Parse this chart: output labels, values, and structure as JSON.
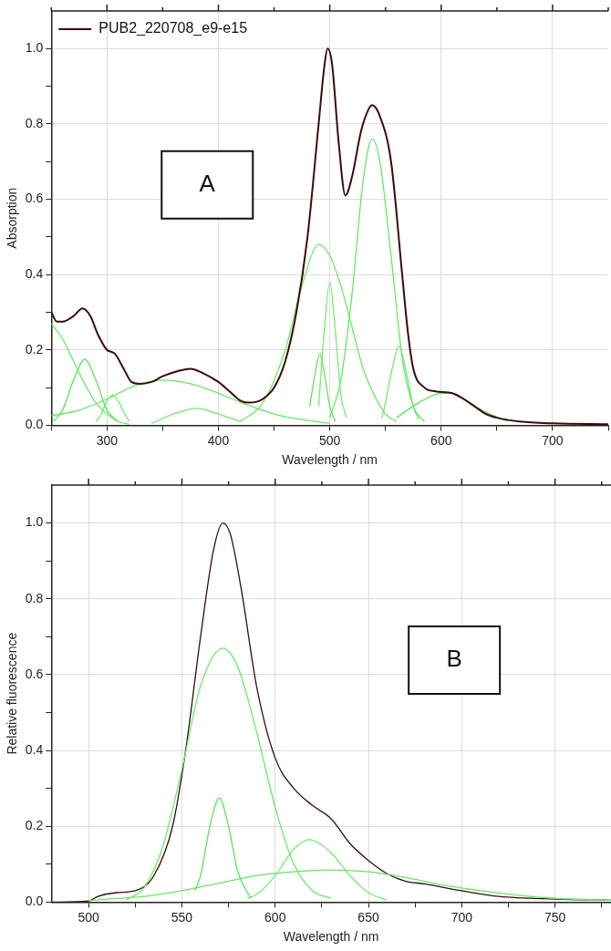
{
  "chart_data": [
    {
      "type": "line",
      "xlabel": "Wavelength / nm",
      "ylabel": "Absorption",
      "annotations": [
        "A"
      ],
      "legend": "top left",
      "grid": true,
      "xlim": [
        250,
        750
      ],
      "ylim": [
        0,
        1.1
      ],
      "xticks": [
        {
          "value": 250,
          "label": null
        },
        300,
        {
          "value": 350,
          "label": null
        },
        400,
        {
          "value": 450,
          "label": null
        },
        500,
        {
          "value": 550,
          "label": null
        },
        600,
        {
          "value": 650,
          "label": null
        },
        700,
        {
          "value": 750,
          "label": null
        }
      ],
      "yticks": [
        {
          "value": 0,
          "label": "0.0"
        },
        {
          "value": 0.1,
          "label": null
        },
        0.2,
        {
          "value": 0.3,
          "label": null
        },
        0.4,
        {
          "value": 0.5,
          "label": null
        },
        0.6,
        {
          "value": 0.7,
          "label": null
        },
        0.8,
        {
          "value": 0.9,
          "label": null
        },
        {
          "value": 1,
          "label": "1.0"
        }
      ],
      "series": [
        {
          "color": "#66ee66",
          "x": [
            250,
            260,
            270,
            280,
            290,
            300,
            310,
            320
          ],
          "values": [
            0.27,
            0.23,
            0.17,
            0.11,
            0.06,
            0.03,
            0.01,
            0.003
          ]
        },
        {
          "color": "#5ce65c",
          "x": [
            252,
            260,
            270,
            280,
            290,
            300,
            310
          ],
          "values": [
            0.01,
            0.04,
            0.12,
            0.175,
            0.12,
            0.04,
            0.01
          ]
        },
        {
          "color": "#70f070",
          "x": [
            290,
            295,
            300,
            305,
            310,
            315,
            320
          ],
          "values": [
            0.01,
            0.03,
            0.065,
            0.08,
            0.065,
            0.035,
            0.01
          ]
        },
        {
          "color": "#62ea62",
          "x": [
            250,
            275,
            300,
            325,
            350,
            375,
            400,
            425,
            450,
            475,
            500
          ],
          "values": [
            0.025,
            0.04,
            0.07,
            0.105,
            0.12,
            0.11,
            0.085,
            0.055,
            0.03,
            0.015,
            0.005
          ]
        },
        {
          "color": "#6aec6a",
          "x": [
            340,
            360,
            380,
            400,
            420
          ],
          "values": [
            0.005,
            0.03,
            0.045,
            0.03,
            0.01
          ]
        },
        {
          "color": "#66ee66",
          "x": [
            420,
            440,
            460,
            475,
            490,
            500,
            510,
            520,
            530,
            540,
            550,
            560
          ],
          "values": [
            0.01,
            0.06,
            0.2,
            0.37,
            0.48,
            0.45,
            0.37,
            0.26,
            0.15,
            0.08,
            0.03,
            0.01
          ]
        },
        {
          "color": "#5ce65c",
          "x": [
            482,
            487,
            491,
            495,
            500,
            505
          ],
          "values": [
            0.05,
            0.14,
            0.19,
            0.14,
            0.05,
            0.01
          ]
        },
        {
          "color": "#70f070",
          "x": [
            490,
            495,
            500,
            505,
            510,
            515
          ],
          "values": [
            0.05,
            0.25,
            0.38,
            0.25,
            0.08,
            0.02
          ]
        },
        {
          "color": "#62ea62",
          "x": [
            500,
            510,
            520,
            530,
            538,
            545,
            555,
            565,
            575,
            585
          ],
          "values": [
            0.02,
            0.12,
            0.35,
            0.65,
            0.76,
            0.7,
            0.45,
            0.18,
            0.05,
            0.01
          ]
        },
        {
          "color": "#6aec6a",
          "x": [
            547,
            550,
            556,
            562,
            568,
            575,
            580
          ],
          "values": [
            0.02,
            0.06,
            0.15,
            0.21,
            0.15,
            0.05,
            0.015
          ]
        },
        {
          "color": "#5ae45a",
          "x": [
            560,
            580,
            600,
            610,
            620,
            640,
            660
          ],
          "values": [
            0.02,
            0.06,
            0.085,
            0.085,
            0.07,
            0.035,
            0.01
          ]
        },
        {
          "name": "PUB2_220708_e9-e15",
          "color": "#3b0b0b",
          "x": [
            250,
            255,
            260,
            270,
            278,
            285,
            292,
            300,
            307,
            315,
            322,
            330,
            340,
            350,
            365,
            375,
            385,
            400,
            410,
            420,
            428,
            440,
            450,
            460,
            470,
            480,
            490,
            495,
            498,
            502,
            508,
            514,
            520,
            528,
            535,
            538,
            545,
            555,
            565,
            570,
            575,
            585,
            595,
            610,
            620,
            630,
            640,
            650,
            670,
            700,
            750
          ],
          "values": [
            0.3,
            0.275,
            0.275,
            0.29,
            0.31,
            0.29,
            0.24,
            0.2,
            0.19,
            0.15,
            0.115,
            0.11,
            0.115,
            0.13,
            0.145,
            0.15,
            0.14,
            0.115,
            0.09,
            0.065,
            0.06,
            0.07,
            0.1,
            0.17,
            0.3,
            0.5,
            0.8,
            0.95,
            1,
            0.96,
            0.75,
            0.61,
            0.66,
            0.78,
            0.84,
            0.85,
            0.82,
            0.7,
            0.4,
            0.25,
            0.15,
            0.1,
            0.09,
            0.085,
            0.07,
            0.05,
            0.03,
            0.02,
            0.01,
            0.005,
            0.003
          ]
        }
      ]
    },
    {
      "type": "line",
      "xlabel": "Wavelength / nm",
      "ylabel": "Relative fluorescence",
      "annotations": [
        "B"
      ],
      "grid": true,
      "xlim": [
        480,
        780
      ],
      "ylim": [
        0,
        1.1
      ],
      "xticks": [
        500,
        {
          "value": 525,
          "label": null
        },
        550,
        {
          "value": 575,
          "label": null
        },
        600,
        {
          "value": 625,
          "label": null
        },
        650,
        {
          "value": 675,
          "label": null
        },
        700,
        {
          "value": 725,
          "label": null
        },
        750,
        {
          "value": 775,
          "label": null
        }
      ],
      "yticks": [
        {
          "value": 0,
          "label": "0.0"
        },
        {
          "value": 0.1,
          "label": null
        },
        0.2,
        {
          "value": 0.3,
          "label": null
        },
        0.4,
        {
          "value": 0.5,
          "label": null
        },
        0.6,
        {
          "value": 0.7,
          "label": null
        },
        0.8,
        {
          "value": 0.9,
          "label": null
        },
        {
          "value": 1,
          "label": "1.0"
        }
      ],
      "series": [
        {
          "color": "#66ee66",
          "x": [
            520,
            530,
            540,
            550,
            560,
            572,
            580,
            590,
            600,
            610,
            620,
            630
          ],
          "values": [
            0.005,
            0.04,
            0.15,
            0.35,
            0.57,
            0.67,
            0.62,
            0.45,
            0.25,
            0.1,
            0.03,
            0.01
          ]
        },
        {
          "color": "#5ce65c",
          "x": [
            557,
            560,
            565,
            570,
            575,
            580,
            587
          ],
          "values": [
            0.03,
            0.07,
            0.2,
            0.275,
            0.2,
            0.08,
            0.01
          ]
        },
        {
          "color": "#70f070",
          "x": [
            585,
            590,
            600,
            610,
            618,
            630,
            640,
            650,
            660
          ],
          "values": [
            0.01,
            0.02,
            0.07,
            0.14,
            0.165,
            0.13,
            0.07,
            0.025,
            0.005
          ]
        },
        {
          "color": "#62ea62",
          "x": [
            500,
            510,
            530,
            550,
            570,
            590,
            610,
            627,
            650,
            670,
            690,
            710,
            730,
            750,
            780
          ],
          "values": [
            0.004,
            0.008,
            0.015,
            0.03,
            0.05,
            0.07,
            0.08,
            0.085,
            0.08,
            0.065,
            0.045,
            0.03,
            0.018,
            0.01,
            0.005
          ]
        },
        {
          "color": "#3b0b0b",
          "x": [
            480,
            500,
            505,
            515,
            525,
            535,
            545,
            552,
            560,
            567,
            572,
            576,
            582,
            590,
            600,
            610,
            620,
            630,
            640,
            650,
            660,
            670,
            680,
            700,
            720,
            750,
            780
          ],
          "values": [
            0,
            0.003,
            0.015,
            0.025,
            0.03,
            0.07,
            0.2,
            0.4,
            0.7,
            0.93,
            1,
            0.97,
            0.82,
            0.57,
            0.38,
            0.3,
            0.255,
            0.22,
            0.155,
            0.11,
            0.075,
            0.055,
            0.048,
            0.03,
            0.015,
            0.008,
            0.005
          ]
        }
      ]
    }
  ]
}
